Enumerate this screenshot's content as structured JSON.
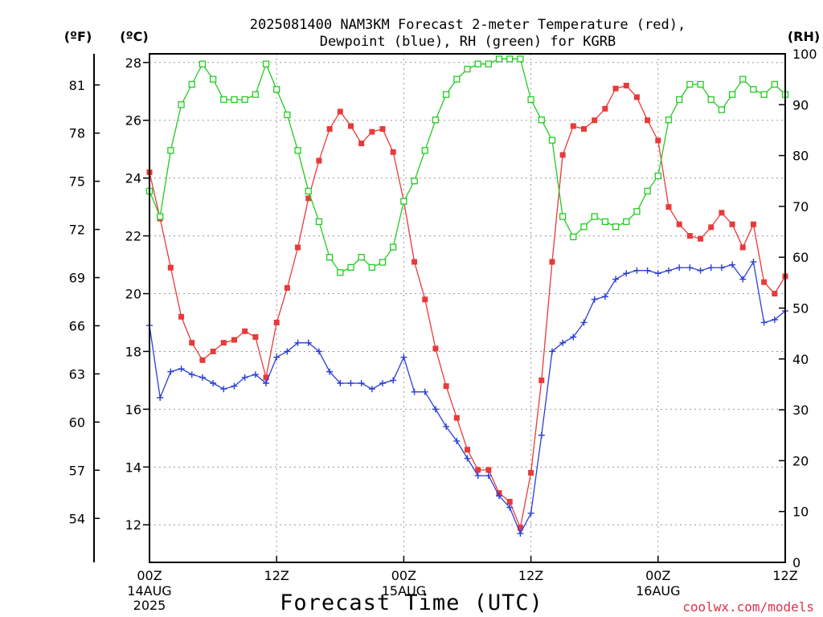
{
  "chart_data": {
    "type": "line",
    "title_line1": "2025081400 NAM3KM Forecast 2-meter Temperature (red),",
    "title_line2": "Dewpoint (blue), RH (green) for KGRB",
    "xlabel": "Forecast Time (UTC)",
    "credit": "coolwx.com/models",
    "left_unit_f": "(ºF)",
    "left_unit_c": "(ºC)",
    "right_unit": "(RH)",
    "ylim_c": [
      10.7,
      28.3
    ],
    "ylim_rh": [
      0,
      100
    ],
    "xlim_hours": [
      0,
      60
    ],
    "grid": true,
    "y_ticks_c": [
      12,
      14,
      16,
      18,
      20,
      22,
      24,
      26,
      28
    ],
    "y_ticks_f": [
      {
        "value": 54,
        "label": "54"
      },
      {
        "value": 57,
        "label": "57"
      },
      {
        "value": 60,
        "label": "60"
      },
      {
        "value": 63,
        "label": "63"
      },
      {
        "value": 66,
        "label": "66"
      },
      {
        "value": 69,
        "label": "69"
      },
      {
        "value": 72,
        "label": "72"
      },
      {
        "value": 75,
        "label": "75"
      },
      {
        "value": 78,
        "label": "78"
      },
      {
        "value": 81,
        "label": "81"
      }
    ],
    "y_ticks_rh": [
      0,
      10,
      20,
      30,
      40,
      50,
      60,
      70,
      80,
      90,
      100
    ],
    "x_ticks": [
      {
        "hour": 0,
        "label": "00Z",
        "date": "14AUG",
        "year": "2025"
      },
      {
        "hour": 12,
        "label": "12Z",
        "date": "",
        "year": ""
      },
      {
        "hour": 24,
        "label": "00Z",
        "date": "15AUG",
        "year": ""
      },
      {
        "hour": 36,
        "label": "12Z",
        "date": "",
        "year": ""
      },
      {
        "hour": 48,
        "label": "00Z",
        "date": "16AUG",
        "year": ""
      },
      {
        "hour": 60,
        "label": "12Z",
        "date": "",
        "year": ""
      }
    ],
    "series": [
      {
        "name": "Temperature",
        "axis": "c",
        "color": "#e83a3a",
        "marker": "filled-square",
        "x": [
          0,
          1,
          2,
          3,
          4,
          5,
          6,
          7,
          8,
          9,
          10,
          11,
          12,
          13,
          14,
          15,
          16,
          17,
          18,
          19,
          20,
          21,
          22,
          23,
          24,
          25,
          26,
          27,
          28,
          29,
          30,
          31,
          32,
          33,
          34,
          35,
          36,
          37,
          38,
          39,
          40,
          41,
          42,
          43,
          44,
          45,
          46,
          47,
          48,
          49,
          50,
          51,
          52,
          53,
          54,
          55,
          56,
          57,
          58,
          59,
          60
        ],
        "values": [
          24.2,
          22.6,
          20.9,
          19.2,
          18.3,
          17.7,
          18.0,
          18.3,
          18.4,
          18.7,
          18.5,
          17.1,
          19.0,
          20.2,
          21.6,
          23.3,
          24.6,
          25.7,
          26.3,
          25.8,
          25.2,
          25.6,
          25.7,
          24.9,
          23.2,
          21.1,
          19.8,
          18.1,
          16.8,
          15.7,
          14.6,
          13.9,
          13.9,
          13.1,
          12.8,
          11.9,
          13.8,
          17.0,
          21.1,
          24.8,
          25.8,
          25.7,
          26.0,
          26.4,
          27.1,
          27.2,
          26.8,
          26.0,
          25.3,
          23.0,
          22.4,
          22.0,
          21.9,
          22.3,
          22.8,
          22.4,
          21.6,
          22.4,
          20.4,
          20.0,
          20.6
        ]
      },
      {
        "name": "Dewpoint",
        "axis": "c",
        "color": "#2b3fd6",
        "marker": "plus",
        "x": [
          0,
          1,
          2,
          3,
          4,
          5,
          6,
          7,
          8,
          9,
          10,
          11,
          12,
          13,
          14,
          15,
          16,
          17,
          18,
          19,
          20,
          21,
          22,
          23,
          24,
          25,
          26,
          27,
          28,
          29,
          30,
          31,
          32,
          33,
          34,
          35,
          36,
          37,
          38,
          39,
          40,
          41,
          42,
          43,
          44,
          45,
          46,
          47,
          48,
          49,
          50,
          51,
          52,
          53,
          54,
          55,
          56,
          57,
          58,
          59,
          60
        ],
        "values": [
          18.9,
          16.4,
          17.3,
          17.4,
          17.2,
          17.1,
          16.9,
          16.7,
          16.8,
          17.1,
          17.2,
          16.9,
          17.8,
          18.0,
          18.3,
          18.3,
          18.0,
          17.3,
          16.9,
          16.9,
          16.9,
          16.7,
          16.9,
          17.0,
          17.8,
          16.6,
          16.6,
          16.0,
          15.4,
          14.9,
          14.3,
          13.7,
          13.7,
          13.0,
          12.6,
          11.7,
          12.4,
          15.1,
          18.0,
          18.3,
          18.5,
          19.0,
          19.8,
          19.9,
          20.5,
          20.7,
          20.8,
          20.8,
          20.7,
          20.8,
          20.9,
          20.9,
          20.8,
          20.9,
          20.9,
          21.0,
          20.5,
          21.1,
          19.0,
          19.1,
          19.4
        ]
      },
      {
        "name": "RH",
        "axis": "rh",
        "color": "#22cc22",
        "marker": "open-square",
        "x": [
          0,
          1,
          2,
          3,
          4,
          5,
          6,
          7,
          8,
          9,
          10,
          11,
          12,
          13,
          14,
          15,
          16,
          17,
          18,
          19,
          20,
          21,
          22,
          23,
          24,
          25,
          26,
          27,
          28,
          29,
          30,
          31,
          32,
          33,
          34,
          35,
          36,
          37,
          38,
          39,
          40,
          41,
          42,
          43,
          44,
          45,
          46,
          47,
          48,
          49,
          50,
          51,
          52,
          53,
          54,
          55,
          56,
          57,
          58,
          59,
          60
        ],
        "values": [
          73,
          68,
          81,
          90,
          94,
          98,
          95,
          91,
          91,
          91,
          92,
          98,
          93,
          88,
          81,
          73,
          67,
          60,
          57,
          58,
          60,
          58,
          59,
          62,
          71,
          75,
          81,
          87,
          92,
          95,
          97,
          98,
          98,
          99,
          99,
          99,
          91,
          87,
          83,
          68,
          64,
          66,
          68,
          67,
          66,
          67,
          69,
          73,
          76,
          87,
          91,
          94,
          94,
          91,
          89,
          92,
          95,
          93,
          92,
          94,
          92
        ]
      }
    ]
  }
}
